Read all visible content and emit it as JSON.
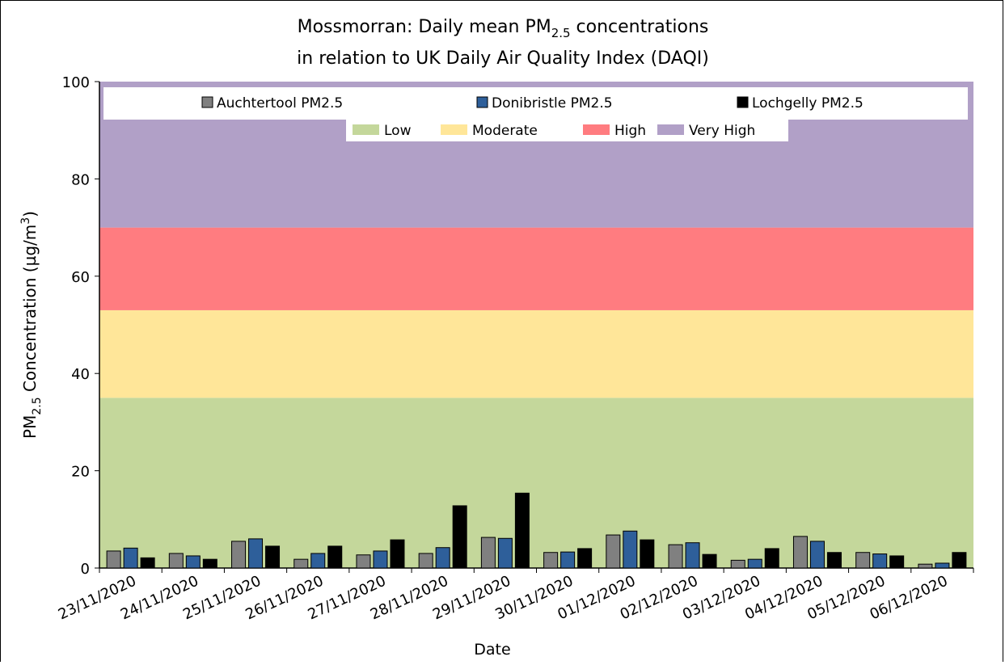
{
  "chart_data": {
    "type": "bar",
    "title": {
      "line1": [
        "Mossmorran: Daily mean PM",
        "2.5",
        " concentrations"
      ],
      "line2": "in relation to UK Daily Air Quality Index (DAQI)"
    },
    "ylabel": [
      "PM",
      "2.5",
      " Concentration (µg/m",
      "3",
      ")"
    ],
    "xlabel": "Date",
    "categories": [
      "23/11/2020",
      "24/11/2020",
      "25/11/2020",
      "26/11/2020",
      "27/11/2020",
      "28/11/2020",
      "29/11/2020",
      "30/11/2020",
      "01/12/2020",
      "02/12/2020",
      "03/12/2020",
      "04/12/2020",
      "05/12/2020",
      "06/12/2020"
    ],
    "series": [
      {
        "name": "Auchtertool PM2.5",
        "color": "#808080",
        "values": [
          3.5,
          3.0,
          5.5,
          1.8,
          2.7,
          3.0,
          6.3,
          3.2,
          6.8,
          4.8,
          1.6,
          6.5,
          3.2,
          0.8
        ]
      },
      {
        "name": "Donibristle PM2.5",
        "color": "#2e5f9a",
        "values": [
          4.1,
          2.5,
          6.0,
          3.0,
          3.5,
          4.2,
          6.1,
          3.3,
          7.6,
          5.2,
          1.8,
          5.5,
          2.9,
          1.0
        ]
      },
      {
        "name": "Lochgelly PM2.5",
        "color": "#000000",
        "values": [
          2.1,
          1.8,
          4.5,
          4.5,
          5.8,
          12.8,
          15.4,
          4.0,
          5.8,
          2.8,
          4.0,
          3.2,
          2.5,
          3.2
        ]
      }
    ],
    "bands": [
      {
        "name": "Low",
        "from": 0,
        "to": 35,
        "color": "#c4d79b"
      },
      {
        "name": "Moderate",
        "from": 35,
        "to": 53,
        "color": "#ffe699"
      },
      {
        "name": "High",
        "from": 53,
        "to": 70,
        "color": "#ff7c80"
      },
      {
        "name": "Very High",
        "from": 70,
        "to": 100,
        "color": "#b1a0c7"
      }
    ],
    "ylim": [
      0,
      100
    ],
    "yticks": [
      0,
      20,
      40,
      60,
      80,
      100
    ]
  }
}
